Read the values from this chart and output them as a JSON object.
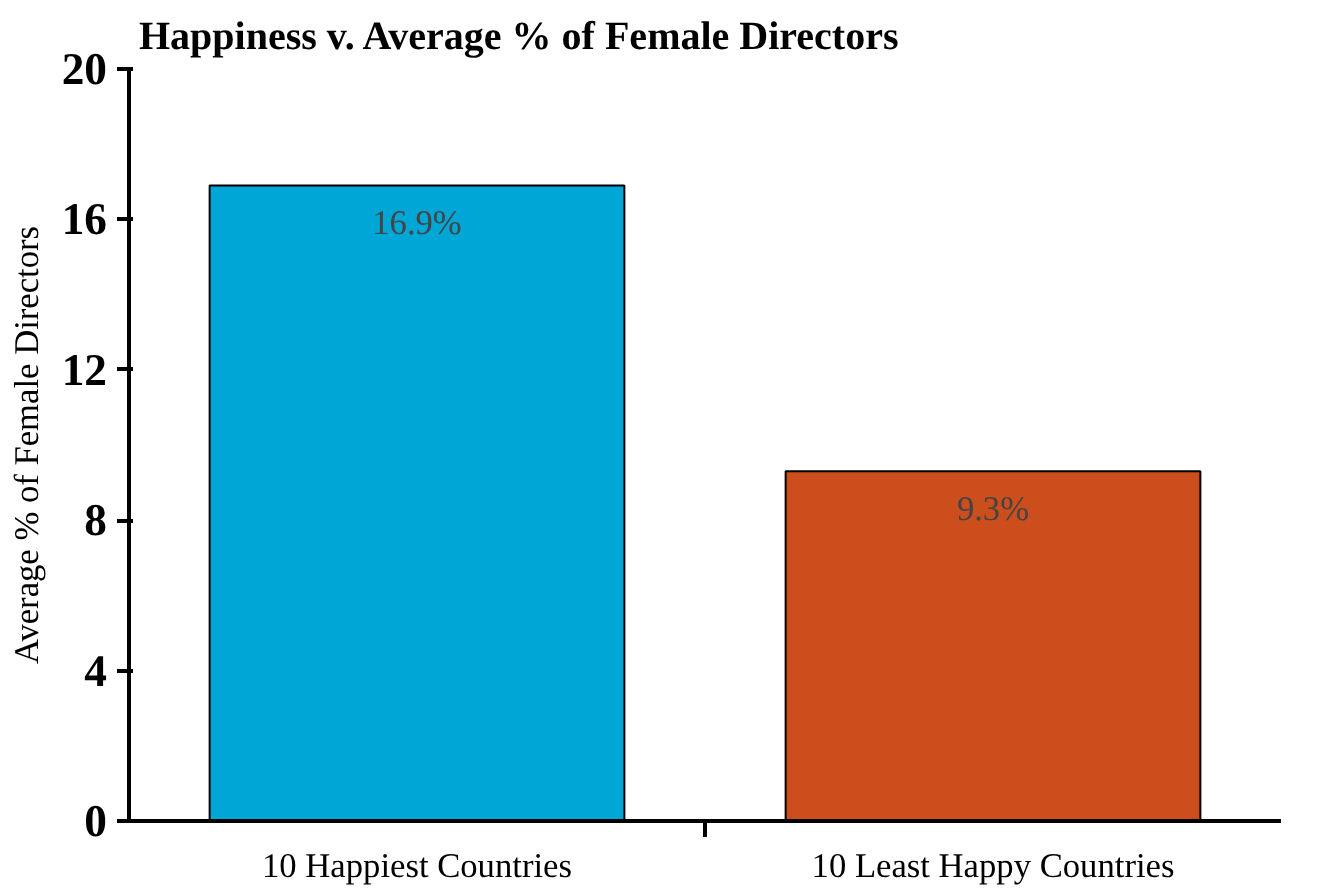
{
  "chart_data": {
    "type": "bar",
    "title": "Happiness v. Average % of Female Directors",
    "ylabel": "Average % of Female Directors",
    "categories": [
      "10 Happiest Countries",
      "10 Least Happy Countries"
    ],
    "values": [
      16.9,
      9.3
    ],
    "colors": [
      "#00a6d6",
      "#cc4e1c"
    ],
    "value_labels": [
      "16.9%",
      "9.3%"
    ],
    "ylim": [
      0,
      20
    ],
    "yticks": [
      0,
      4,
      8,
      12,
      16,
      20
    ],
    "grid": false
  }
}
